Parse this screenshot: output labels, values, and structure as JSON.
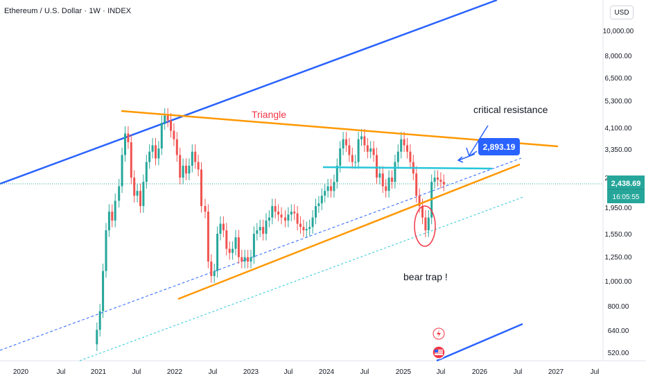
{
  "header": {
    "symbol_title": "Ethereum / U.S. Dollar · 1W · INDEX",
    "currency": "USD"
  },
  "chart_data": {
    "type": "candlestick",
    "x_tick_labels": [
      "2020",
      "Jul",
      "2021",
      "Jul",
      "2022",
      "Jul",
      "2023",
      "Jul",
      "2024",
      "Jul",
      "2025",
      "Jul",
      "2026",
      "Jul",
      "2027",
      "Jul"
    ],
    "y_scale": "log",
    "y_tick_labels": [
      "10,000.00",
      "8,000.00",
      "6,500.00",
      "5,300.00",
      "4,100.00",
      "3,350.00",
      "2,550.00",
      "1,950.00",
      "1,550.00",
      "1,250.00",
      "1,000.00",
      "800.00",
      "640.00",
      "520.00"
    ],
    "last_price": "2,438.69",
    "countdown": "16:05:55",
    "price_callout": "2,893.19",
    "annotations": {
      "triangle": "Triangle",
      "critical": "critical resistance",
      "bear_trap": "bear trap !"
    },
    "price_path": [
      [
        2020.93,
        560
      ],
      [
        2020.98,
        640
      ],
      [
        2021.02,
        760
      ],
      [
        2021.06,
        1100
      ],
      [
        2021.1,
        1600
      ],
      [
        2021.14,
        1900
      ],
      [
        2021.18,
        1750
      ],
      [
        2021.22,
        2100
      ],
      [
        2021.27,
        2400
      ],
      [
        2021.31,
        3200
      ],
      [
        2021.35,
        3900
      ],
      [
        2021.39,
        3600
      ],
      [
        2021.43,
        2600
      ],
      [
        2021.47,
        2200
      ],
      [
        2021.51,
        2300
      ],
      [
        2021.55,
        2000
      ],
      [
        2021.59,
        2500
      ],
      [
        2021.63,
        3000
      ],
      [
        2021.67,
        3300
      ],
      [
        2021.71,
        3500
      ],
      [
        2021.75,
        3100
      ],
      [
        2021.79,
        3400
      ],
      [
        2021.83,
        4300
      ],
      [
        2021.87,
        4600
      ],
      [
        2021.91,
        4400
      ],
      [
        2021.95,
        4000
      ],
      [
        2021.99,
        3700
      ],
      [
        2022.03,
        3200
      ],
      [
        2022.07,
        2600
      ],
      [
        2022.11,
        2900
      ],
      [
        2022.15,
        2700
      ],
      [
        2022.19,
        2900
      ],
      [
        2022.23,
        3300
      ],
      [
        2022.27,
        3000
      ],
      [
        2022.31,
        2800
      ],
      [
        2022.35,
        2000
      ],
      [
        2022.4,
        1900
      ],
      [
        2022.44,
        1200
      ],
      [
        2022.48,
        1050
      ],
      [
        2022.52,
        1100
      ],
      [
        2022.56,
        1550
      ],
      [
        2022.6,
        1700
      ],
      [
        2022.64,
        1600
      ],
      [
        2022.68,
        1350
      ],
      [
        2022.72,
        1300
      ],
      [
        2022.76,
        1350
      ],
      [
        2022.8,
        1500
      ],
      [
        2022.84,
        1250
      ],
      [
        2022.88,
        1200
      ],
      [
        2022.92,
        1250
      ],
      [
        2022.96,
        1200
      ],
      [
        2023.0,
        1250
      ],
      [
        2023.04,
        1550
      ],
      [
        2023.08,
        1600
      ],
      [
        2023.12,
        1650
      ],
      [
        2023.16,
        1550
      ],
      [
        2023.2,
        1750
      ],
      [
        2023.24,
        1800
      ],
      [
        2023.28,
        2000
      ],
      [
        2023.32,
        1900
      ],
      [
        2023.36,
        1850
      ],
      [
        2023.4,
        1800
      ],
      [
        2023.45,
        1750
      ],
      [
        2023.49,
        1850
      ],
      [
        2023.53,
        1900
      ],
      [
        2023.57,
        1870
      ],
      [
        2023.61,
        1700
      ],
      [
        2023.65,
        1650
      ],
      [
        2023.69,
        1600
      ],
      [
        2023.73,
        1620
      ],
      [
        2023.77,
        1650
      ],
      [
        2023.81,
        1800
      ],
      [
        2023.85,
        2000
      ],
      [
        2023.89,
        2050
      ],
      [
        2023.93,
        2200
      ],
      [
        2023.97,
        2300
      ],
      [
        2024.01,
        2400
      ],
      [
        2024.05,
        2300
      ],
      [
        2024.09,
        2500
      ],
      [
        2024.13,
        2900
      ],
      [
        2024.17,
        3400
      ],
      [
        2024.21,
        3700
      ],
      [
        2024.25,
        3500
      ],
      [
        2024.29,
        3200
      ],
      [
        2024.33,
        3000
      ],
      [
        2024.37,
        3000
      ],
      [
        2024.41,
        3700
      ],
      [
        2024.45,
        3800
      ],
      [
        2024.49,
        3500
      ],
      [
        2024.53,
        3300
      ],
      [
        2024.57,
        3400
      ],
      [
        2024.61,
        3200
      ],
      [
        2024.65,
        2600
      ],
      [
        2024.69,
        2700
      ],
      [
        2024.73,
        2400
      ],
      [
        2024.77,
        2300
      ],
      [
        2024.81,
        2600
      ],
      [
        2024.85,
        2500
      ],
      [
        2024.89,
        3000
      ],
      [
        2024.93,
        3300
      ],
      [
        2024.97,
        3700
      ],
      [
        2025.01,
        3500
      ],
      [
        2025.05,
        3300
      ],
      [
        2025.09,
        3000
      ],
      [
        2025.13,
        2700
      ],
      [
        2025.17,
        2200
      ],
      [
        2025.21,
        2000
      ],
      [
        2025.25,
        1800
      ],
      [
        2025.29,
        1600
      ],
      [
        2025.33,
        1800
      ],
      [
        2025.37,
        2500
      ],
      [
        2025.41,
        2600
      ],
      [
        2025.45,
        2550
      ],
      [
        2025.49,
        2500
      ],
      [
        2025.53,
        2440
      ]
    ]
  }
}
